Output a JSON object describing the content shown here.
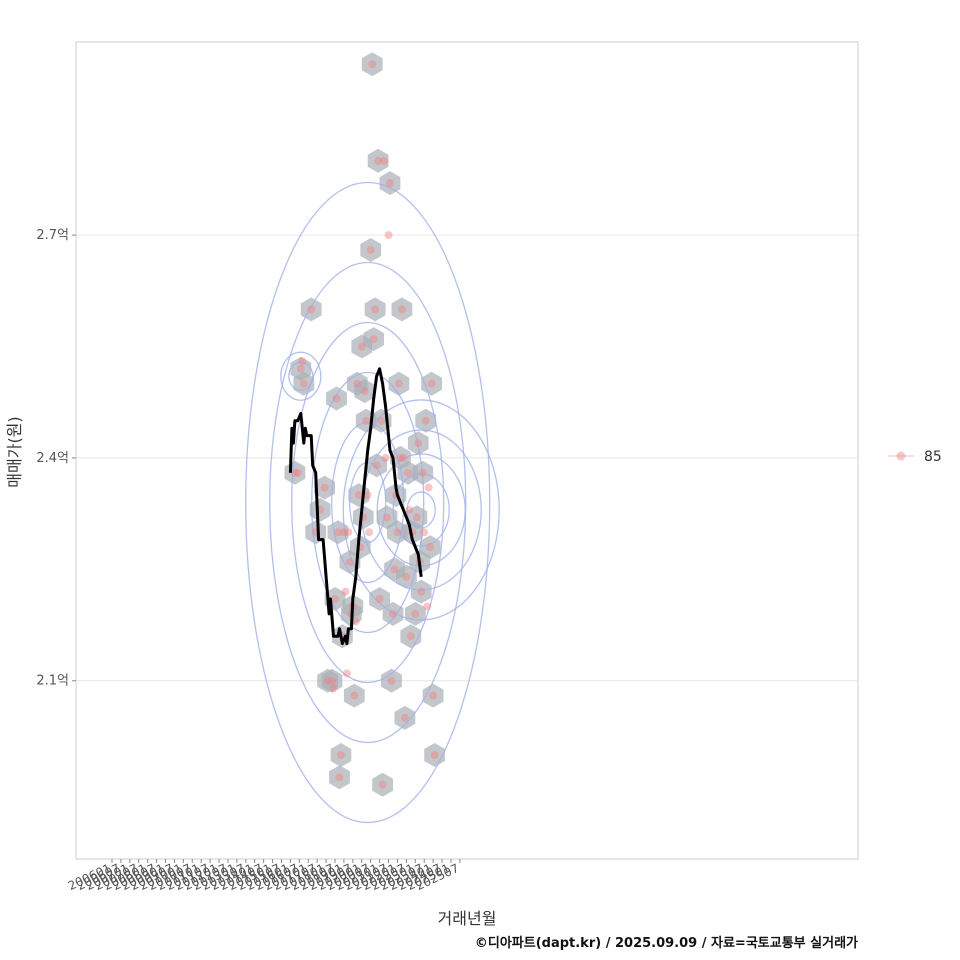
{
  "chart_data": {
    "type": "scatter",
    "xlabel": "거래년월",
    "ylabel": "매매가(원)",
    "caption": "©디아파트(dapt.kr) / 2025.09.09 / 자료=국토교통부 실거래가",
    "legend": {
      "position": "right",
      "entries": [
        "85"
      ]
    },
    "grid": true,
    "ylim": [
      1.86,
      2.96
    ],
    "y_unit": "억",
    "yticks": [
      {
        "value": 2.1,
        "label": "2.1억"
      },
      {
        "value": 2.4,
        "label": "2.4억"
      },
      {
        "value": 2.7,
        "label": "2.7억"
      }
    ],
    "xticks": [
      "200601",
      "200607",
      "200701",
      "200707",
      "200801",
      "200807",
      "200901",
      "200907",
      "201001",
      "201007",
      "201101",
      "201107",
      "201201",
      "201207",
      "201301",
      "201307",
      "201401",
      "201407",
      "201501",
      "201507",
      "201601",
      "201607",
      "201701",
      "201707",
      "201801",
      "201807",
      "201901",
      "201907",
      "202001",
      "202007",
      "202101",
      "202107",
      "202201",
      "202207",
      "202301",
      "202307",
      "202401",
      "202407",
      "202501",
      "202507"
    ],
    "colors": {
      "points": "#f08080",
      "hexbin": "#a9afb6",
      "contour": "#9fb0e8",
      "trend": "#000000",
      "grid": "#e6e6e6"
    },
    "series": [
      {
        "name": "85",
        "points": [
          [
            "2016-04",
            2.38
          ],
          [
            "2016-06",
            2.38
          ],
          [
            "2016-08",
            2.52
          ],
          [
            "2016-09",
            2.53
          ],
          [
            "2016-10",
            2.5
          ],
          [
            "2017-03",
            2.6
          ],
          [
            "2017-06",
            2.3
          ],
          [
            "2017-09",
            2.33
          ],
          [
            "2017-12",
            2.36
          ],
          [
            "2018-02",
            2.1
          ],
          [
            "2018-05",
            2.1
          ],
          [
            "2018-06",
            2.09
          ],
          [
            "2018-07",
            2.21
          ],
          [
            "2018-08",
            2.48
          ],
          [
            "2018-09",
            2.3
          ],
          [
            "2018-10",
            1.97
          ],
          [
            "2018-11",
            2.0
          ],
          [
            "2018-12",
            2.16
          ],
          [
            "2019-01",
            2.3
          ],
          [
            "2019-02",
            2.22
          ],
          [
            "2019-03",
            2.11
          ],
          [
            "2019-04",
            2.3
          ],
          [
            "2019-05",
            2.26
          ],
          [
            "2019-06",
            2.19
          ],
          [
            "2019-07",
            2.2
          ],
          [
            "2019-08",
            2.08
          ],
          [
            "2019-09",
            2.18
          ],
          [
            "2019-10",
            2.5
          ],
          [
            "2019-11",
            2.35
          ],
          [
            "2019-12",
            2.28
          ],
          [
            "2020-01",
            2.55
          ],
          [
            "2020-02",
            2.32
          ],
          [
            "2020-03",
            2.49
          ],
          [
            "2020-04",
            2.45
          ],
          [
            "2020-05",
            2.35
          ],
          [
            "2020-06",
            2.3
          ],
          [
            "2020-07",
            2.68
          ],
          [
            "2020-08",
            2.93
          ],
          [
            "2020-09",
            2.56
          ],
          [
            "2020-10",
            2.6
          ],
          [
            "2020-11",
            2.39
          ],
          [
            "2020-12",
            2.8
          ],
          [
            "2021-01",
            2.21
          ],
          [
            "2021-02",
            2.45
          ],
          [
            "2021-03",
            1.96
          ],
          [
            "2021-04",
            2.8
          ],
          [
            "2021-05",
            2.4
          ],
          [
            "2021-06",
            2.32
          ],
          [
            "2021-07",
            2.7
          ],
          [
            "2021-08",
            2.77
          ],
          [
            "2021-09",
            2.1
          ],
          [
            "2021-10",
            2.19
          ],
          [
            "2021-11",
            2.25
          ],
          [
            "2021-12",
            2.35
          ],
          [
            "2022-01",
            2.3
          ],
          [
            "2022-02",
            2.5
          ],
          [
            "2022-03",
            2.4
          ],
          [
            "2022-04",
            2.6
          ],
          [
            "2022-05",
            2.4
          ],
          [
            "2022-06",
            2.05
          ],
          [
            "2022-07",
            2.24
          ],
          [
            "2022-08",
            2.38
          ],
          [
            "2022-09",
            2.33
          ],
          [
            "2022-10",
            2.16
          ],
          [
            "2022-11",
            2.3
          ],
          [
            "2023-01",
            2.19
          ],
          [
            "2023-02",
            2.32
          ],
          [
            "2023-03",
            2.42
          ],
          [
            "2023-04",
            2.26
          ],
          [
            "2023-05",
            2.22
          ],
          [
            "2023-06",
            2.38
          ],
          [
            "2023-07",
            2.3
          ],
          [
            "2023-08",
            2.45
          ],
          [
            "2023-09",
            2.2
          ],
          [
            "2023-10",
            2.36
          ],
          [
            "2023-11",
            2.28
          ],
          [
            "2023-12",
            2.5
          ],
          [
            "2024-01",
            2.08
          ],
          [
            "2024-02",
            2.0
          ]
        ]
      }
    ],
    "trend": [
      [
        "2016-01",
        2.38
      ],
      [
        "2016-02",
        2.44
      ],
      [
        "2016-03",
        2.42
      ],
      [
        "2016-04",
        2.45
      ],
      [
        "2016-06",
        2.45
      ],
      [
        "2016-08",
        2.46
      ],
      [
        "2016-10",
        2.42
      ],
      [
        "2016-11",
        2.44
      ],
      [
        "2016-12",
        2.43
      ],
      [
        "2017-03",
        2.43
      ],
      [
        "2017-04",
        2.39
      ],
      [
        "2017-06",
        2.38
      ],
      [
        "2017-08",
        2.29
      ],
      [
        "2017-11",
        2.29
      ],
      [
        "2018-01",
        2.24
      ],
      [
        "2018-03",
        2.19
      ],
      [
        "2018-04",
        2.21
      ],
      [
        "2018-06",
        2.16
      ],
      [
        "2018-09",
        2.16
      ],
      [
        "2018-10",
        2.17
      ],
      [
        "2018-12",
        2.15
      ],
      [
        "2019-02",
        2.16
      ],
      [
        "2019-03",
        2.15
      ],
      [
        "2019-04",
        2.17
      ],
      [
        "2019-06",
        2.17
      ],
      [
        "2019-07",
        2.21
      ],
      [
        "2019-09",
        2.24
      ],
      [
        "2019-11",
        2.29
      ],
      [
        "2020-01",
        2.33
      ],
      [
        "2020-03",
        2.37
      ],
      [
        "2020-05",
        2.41
      ],
      [
        "2020-07",
        2.44
      ],
      [
        "2020-09",
        2.48
      ],
      [
        "2020-11",
        2.51
      ],
      [
        "2021-01",
        2.52
      ],
      [
        "2021-03",
        2.5
      ],
      [
        "2021-05",
        2.47
      ],
      [
        "2021-07",
        2.43
      ],
      [
        "2021-08",
        2.41
      ],
      [
        "2021-10",
        2.4
      ],
      [
        "2021-12",
        2.36
      ],
      [
        "2022-01",
        2.35
      ],
      [
        "2022-03",
        2.34
      ],
      [
        "2022-05",
        2.33
      ],
      [
        "2022-07",
        2.32
      ],
      [
        "2022-09",
        2.31
      ],
      [
        "2022-11",
        2.29
      ],
      [
        "2023-01",
        2.28
      ],
      [
        "2023-03",
        2.27
      ],
      [
        "2023-05",
        2.24
      ]
    ]
  }
}
